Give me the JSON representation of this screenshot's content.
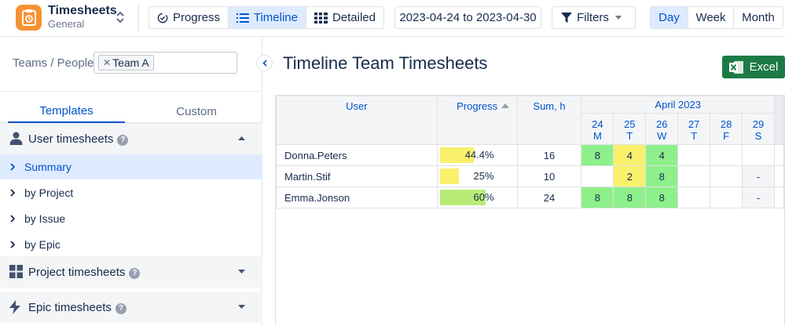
{
  "app": {
    "title": "Timesheets",
    "subtitle": "General"
  },
  "views": [
    {
      "label": "Progress",
      "icon": "progress-icon",
      "active": false
    },
    {
      "label": "Timeline",
      "icon": "list-icon",
      "active": true
    },
    {
      "label": "Detailed",
      "icon": "grid-icon",
      "active": false
    }
  ],
  "date_range": "2023-04-24 to 2023-04-30",
  "filters_label": "Filters",
  "periods": [
    {
      "label": "Day",
      "active": true
    },
    {
      "label": "Week",
      "active": false
    },
    {
      "label": "Month",
      "active": false
    }
  ],
  "sidebar": {
    "teams_label": "Teams / People:",
    "team_chip": "Team A",
    "tabs": [
      "Templates",
      "Custom"
    ],
    "sections": [
      {
        "label": "User timesheets",
        "icon": "user-icon",
        "expanded": true
      },
      {
        "label": "Project timesheets",
        "icon": "grid-icon",
        "expanded": false
      },
      {
        "label": "Epic timesheets",
        "icon": "lightning-icon",
        "expanded": false
      }
    ],
    "user_items": [
      "Summary",
      "by Project",
      "by Issue",
      "by Epic"
    ]
  },
  "main": {
    "title": "Timeline Team Timesheets",
    "excel_label": "Excel"
  },
  "table": {
    "headers": {
      "user": "User",
      "progress": "Progress",
      "sum": "Sum, h",
      "month": "April 2023"
    },
    "days": [
      {
        "num": "24",
        "wd": "M"
      },
      {
        "num": "25",
        "wd": "T"
      },
      {
        "num": "26",
        "wd": "W"
      },
      {
        "num": "27",
        "wd": "T"
      },
      {
        "num": "28",
        "wd": "F"
      },
      {
        "num": "29",
        "wd": "S"
      }
    ],
    "rows": [
      {
        "user": "Donna.Peters",
        "progress": "44.4%",
        "progress_value": 0.444,
        "progress_color": "#f9f06c",
        "sum": "16",
        "cells": [
          "8",
          "4",
          "4",
          "",
          "",
          ""
        ]
      },
      {
        "user": "Martin.Stif",
        "progress": "25%",
        "progress_value": 0.25,
        "progress_color": "#f9f06c",
        "sum": "10",
        "cells": [
          "",
          "2",
          "8",
          "",
          "",
          "-"
        ]
      },
      {
        "user": "Emma.Jonson",
        "progress": "60%",
        "progress_value": 0.6,
        "progress_color": "#b9ec77",
        "sum": "24",
        "cells": [
          "8",
          "8",
          "8",
          "",
          "",
          "-"
        ]
      }
    ],
    "cell_colors": {
      "green": "#8ef08a",
      "yellow": "#f9f06c"
    }
  }
}
